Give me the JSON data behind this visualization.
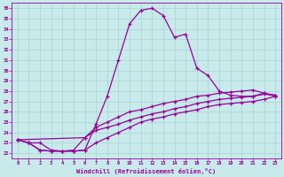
{
  "xlabel": "Windchill (Refroidissement éolien,°C)",
  "xlim": [
    -0.5,
    23.5
  ],
  "ylim": [
    21.5,
    36.5
  ],
  "yticks": [
    22,
    23,
    24,
    25,
    26,
    27,
    28,
    29,
    30,
    31,
    32,
    33,
    34,
    35,
    36
  ],
  "xticks": [
    0,
    1,
    2,
    3,
    4,
    5,
    6,
    7,
    8,
    9,
    10,
    11,
    12,
    13,
    14,
    15,
    16,
    17,
    18,
    19,
    20,
    21,
    22,
    23
  ],
  "line_color": "#990099",
  "bg_color": "#c8eaea",
  "grid_color": "#a8d4d4",
  "line1_x": [
    0,
    1,
    2,
    3,
    4,
    5,
    6,
    7,
    8,
    9,
    10,
    11,
    12,
    13,
    14,
    15,
    16,
    17,
    18,
    19,
    20,
    21,
    22,
    23
  ],
  "line1_y": [
    23.3,
    23.0,
    23.0,
    22.3,
    22.2,
    22.2,
    22.3,
    24.8,
    27.5,
    31.0,
    34.5,
    35.8,
    36.0,
    35.3,
    33.2,
    33.5,
    30.2,
    29.5,
    28.0,
    27.6,
    27.5,
    27.5,
    27.8,
    27.5
  ],
  "line2_x": [
    0,
    1,
    2,
    3,
    4,
    5,
    6,
    7,
    8,
    9,
    10,
    11,
    12,
    13,
    14,
    15,
    16,
    17,
    18,
    19,
    20,
    21,
    22,
    23
  ],
  "line2_y": [
    23.3,
    23.0,
    22.3,
    22.2,
    22.2,
    22.3,
    23.5,
    24.5,
    25.0,
    25.5,
    26.0,
    26.2,
    26.5,
    26.8,
    27.0,
    27.2,
    27.5,
    27.6,
    27.8,
    27.9,
    28.0,
    28.1,
    27.8,
    27.6
  ],
  "line3_x": [
    0,
    6,
    7,
    8,
    9,
    10,
    11,
    12,
    13,
    14,
    15,
    16,
    17,
    18,
    19,
    20,
    21,
    22,
    23
  ],
  "line3_y": [
    23.3,
    23.5,
    24.2,
    24.5,
    24.8,
    25.2,
    25.5,
    25.8,
    26.0,
    26.3,
    26.5,
    26.8,
    27.0,
    27.2,
    27.3,
    27.4,
    27.5,
    27.7,
    27.6
  ],
  "line4_x": [
    0,
    1,
    2,
    3,
    4,
    5,
    6,
    7,
    8,
    9,
    10,
    11,
    12,
    13,
    14,
    15,
    16,
    17,
    18,
    19,
    20,
    21,
    22,
    23
  ],
  "line4_y": [
    23.3,
    23.0,
    22.3,
    22.2,
    22.2,
    22.2,
    22.3,
    23.0,
    23.5,
    24.0,
    24.5,
    25.0,
    25.3,
    25.5,
    25.8,
    26.0,
    26.2,
    26.5,
    26.7,
    26.8,
    26.9,
    27.0,
    27.2,
    27.5
  ]
}
